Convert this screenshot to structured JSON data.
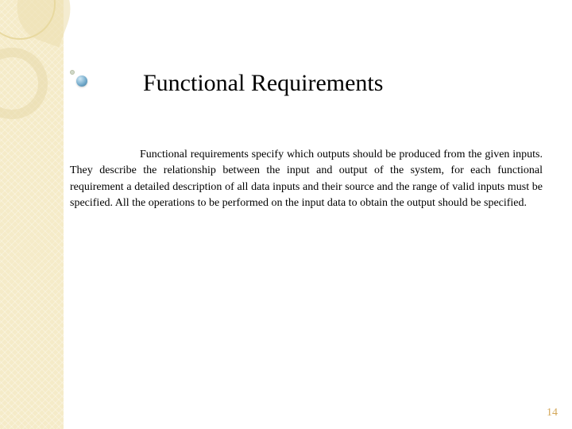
{
  "slide": {
    "title": "Functional Requirements",
    "body": "Functional requirements specify which outputs should be produced from the given inputs. They describe the relationship between the input and output of the system, for each functional requirement a detailed description of all data inputs and their source and the range of valid inputs must be specified. All the operations to be performed on the input data to obtain the output should be specified.",
    "page_number": "14"
  },
  "styling": {
    "sidebar_bg": "#f5ebc8",
    "title_fontsize": 30,
    "body_fontsize": 14,
    "page_number_color": "#d4a85a",
    "text_color": "#000000",
    "background_color": "#ffffff"
  }
}
